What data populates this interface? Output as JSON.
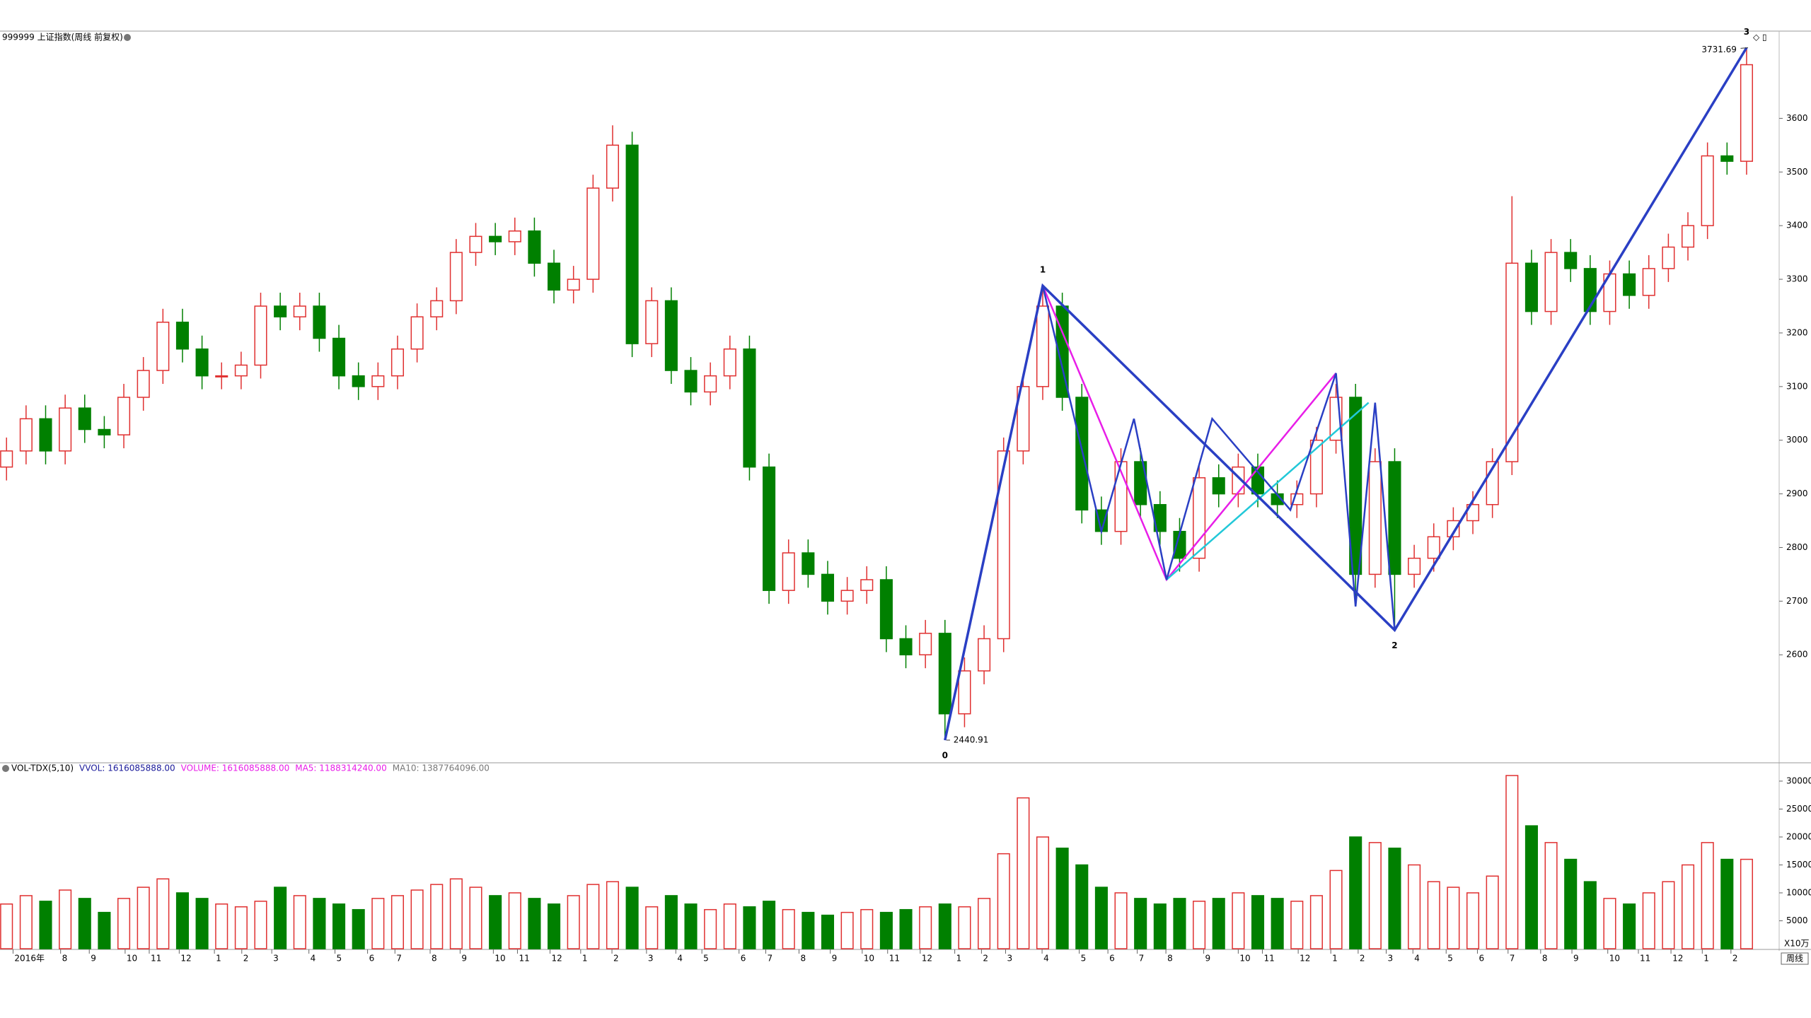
{
  "chart_data": {
    "type": "candlestick",
    "title": "999999 上证指数(周线 前复权)",
    "period_label": "周线",
    "up_color": "#e03030",
    "down_color": "#008000",
    "xlim": [
      -1,
      272
    ],
    "xticks": [
      {
        "value": 1,
        "label": "2016年"
      },
      {
        "value": 8.3,
        "label": "8"
      },
      {
        "value": 12.7,
        "label": "9"
      },
      {
        "value": 18.2,
        "label": "10"
      },
      {
        "value": 21.9,
        "label": "11"
      },
      {
        "value": 26.5,
        "label": "12"
      },
      {
        "value": 31.9,
        "label": "1"
      },
      {
        "value": 36.1,
        "label": "2"
      },
      {
        "value": 40.7,
        "label": "3"
      },
      {
        "value": 46.4,
        "label": "4"
      },
      {
        "value": 50.4,
        "label": "5"
      },
      {
        "value": 55.4,
        "label": "6"
      },
      {
        "value": 59.6,
        "label": "7"
      },
      {
        "value": 65,
        "label": "8"
      },
      {
        "value": 69.6,
        "label": "9"
      },
      {
        "value": 74.7,
        "label": "10"
      },
      {
        "value": 78.4,
        "label": "11"
      },
      {
        "value": 83.4,
        "label": "12"
      },
      {
        "value": 88.1,
        "label": "1"
      },
      {
        "value": 92.9,
        "label": "2"
      },
      {
        "value": 98.2,
        "label": "3"
      },
      {
        "value": 102.7,
        "label": "4"
      },
      {
        "value": 106.7,
        "label": "5"
      },
      {
        "value": 112.4,
        "label": "6"
      },
      {
        "value": 116.5,
        "label": "7"
      },
      {
        "value": 121.6,
        "label": "8"
      },
      {
        "value": 126.4,
        "label": "9"
      },
      {
        "value": 131.3,
        "label": "10"
      },
      {
        "value": 135.2,
        "label": "11"
      },
      {
        "value": 140.2,
        "label": "12"
      },
      {
        "value": 145.5,
        "label": "1"
      },
      {
        "value": 149.6,
        "label": "2"
      },
      {
        "value": 153.3,
        "label": "3"
      },
      {
        "value": 158.9,
        "label": "4"
      },
      {
        "value": 164.6,
        "label": "5"
      },
      {
        "value": 169,
        "label": "6"
      },
      {
        "value": 173.5,
        "label": "7"
      },
      {
        "value": 177.9,
        "label": "8"
      },
      {
        "value": 183.7,
        "label": "9"
      },
      {
        "value": 189,
        "label": "10"
      },
      {
        "value": 192.7,
        "label": "11"
      },
      {
        "value": 198.2,
        "label": "12"
      },
      {
        "value": 203.2,
        "label": "1"
      },
      {
        "value": 207.4,
        "label": "2"
      },
      {
        "value": 211.7,
        "label": "3"
      },
      {
        "value": 215.8,
        "label": "4"
      },
      {
        "value": 220.9,
        "label": "5"
      },
      {
        "value": 225.7,
        "label": "6"
      },
      {
        "value": 230.4,
        "label": "7"
      },
      {
        "value": 235.4,
        "label": "8"
      },
      {
        "value": 240.2,
        "label": "9"
      },
      {
        "value": 245.7,
        "label": "10"
      },
      {
        "value": 250.4,
        "label": "11"
      },
      {
        "value": 255.4,
        "label": "12"
      },
      {
        "value": 260.2,
        "label": "1"
      },
      {
        "value": 264.6,
        "label": "2"
      }
    ],
    "ylim": [
      2400,
      3760
    ],
    "yticks": [
      2600,
      2700,
      2800,
      2900,
      3000,
      3100,
      3200,
      3300,
      3400,
      3500,
      3600
    ],
    "candles": {
      "x": [
        0,
        3,
        6,
        9,
        12,
        15,
        18,
        21,
        24,
        27,
        30,
        33,
        36,
        39,
        42,
        45,
        48,
        51,
        54,
        57,
        60,
        63,
        66,
        69,
        72,
        75,
        78,
        81,
        84,
        87,
        90,
        93,
        96,
        99,
        102,
        105,
        108,
        111,
        114,
        117,
        120,
        123,
        126,
        129,
        132,
        135,
        138,
        141,
        144,
        147,
        150,
        153,
        156,
        159,
        162,
        165,
        168,
        171,
        174,
        177,
        180,
        183,
        186,
        189,
        192,
        195,
        198,
        201,
        204,
        207,
        210,
        213,
        216,
        219,
        222,
        225,
        228,
        231,
        234,
        237,
        240,
        243,
        246,
        249,
        252,
        255,
        258,
        261,
        264,
        267
      ],
      "open": [
        2950,
        2980,
        3040,
        2980,
        3060,
        3020,
        3010,
        3080,
        3130,
        3220,
        3170,
        3120,
        3120,
        3140,
        3250,
        3230,
        3250,
        3190,
        3120,
        3100,
        3120,
        3170,
        3230,
        3260,
        3350,
        3380,
        3370,
        3390,
        3330,
        3280,
        3300,
        3470,
        3550,
        3180,
        3260,
        3130,
        3090,
        3120,
        3170,
        2950,
        2720,
        2790,
        2750,
        2700,
        2720,
        2740,
        2630,
        2600,
        2640,
        2490,
        2570,
        2630,
        2980,
        3100,
        3250,
        3080,
        2870,
        2830,
        2960,
        2880,
        2830,
        2780,
        2930,
        2900,
        2950,
        2900,
        2880,
        2900,
        3000,
        3080,
        2750,
        2960,
        2750,
        2780,
        2820,
        2850,
        2880,
        2960,
        3330,
        3240,
        3350,
        3320,
        3240,
        3310,
        3270,
        3320,
        3360,
        3400,
        3530,
        3520
      ],
      "high": [
        3005,
        3065,
        3065,
        3085,
        3085,
        3045,
        3105,
        3155,
        3245,
        3245,
        3195,
        3145,
        3165,
        3275,
        3275,
        3275,
        3275,
        3215,
        3145,
        3145,
        3195,
        3255,
        3285,
        3375,
        3405,
        3405,
        3415,
        3415,
        3355,
        3325,
        3495,
        3587,
        3575,
        3285,
        3285,
        3155,
        3145,
        3195,
        3195,
        2975,
        2815,
        2815,
        2775,
        2745,
        2765,
        2765,
        2655,
        2665,
        2665,
        2595,
        2655,
        3005,
        3125,
        3288,
        3275,
        3105,
        2895,
        2985,
        2985,
        2905,
        2855,
        2955,
        2955,
        2975,
        2975,
        2925,
        2925,
        3025,
        3105,
        3105,
        2985,
        2985,
        2805,
        2845,
        2875,
        2905,
        2985,
        3455,
        3355,
        3375,
        3375,
        3345,
        3335,
        3335,
        3345,
        3385,
        3425,
        3555,
        3555,
        3731.69
      ],
      "low": [
        2925,
        2955,
        2955,
        2955,
        2995,
        2985,
        2985,
        3055,
        3105,
        3145,
        3095,
        3095,
        3095,
        3115,
        3205,
        3205,
        3165,
        3095,
        3075,
        3075,
        3095,
        3145,
        3205,
        3235,
        3325,
        3345,
        3345,
        3305,
        3255,
        3255,
        3275,
        3445,
        3155,
        3155,
        3105,
        3065,
        3065,
        3095,
        2925,
        2695,
        2695,
        2725,
        2675,
        2675,
        2695,
        2605,
        2575,
        2575,
        2440.91,
        2465,
        2545,
        2605,
        2955,
        3075,
        3055,
        2845,
        2805,
        2805,
        2855,
        2805,
        2755,
        2755,
        2875,
        2875,
        2875,
        2855,
        2855,
        2875,
        2975,
        2690,
        2725,
        2646,
        2725,
        2755,
        2795,
        2825,
        2855,
        2935,
        3215,
        3215,
        3295,
        3215,
        3215,
        3245,
        3245,
        3295,
        3335,
        3375,
        3495,
        3495
      ],
      "close": [
        2980,
        3040,
        2980,
        3060,
        3020,
        3010,
        3080,
        3130,
        3220,
        3170,
        3120,
        3120,
        3140,
        3250,
        3230,
        3250,
        3190,
        3120,
        3100,
        3120,
        3170,
        3230,
        3260,
        3350,
        3380,
        3370,
        3390,
        3330,
        3280,
        3300,
        3470,
        3550,
        3180,
        3260,
        3130,
        3090,
        3120,
        3170,
        2950,
        2720,
        2790,
        2750,
        2700,
        2720,
        2740,
        2630,
        2600,
        2640,
        2490,
        2570,
        2630,
        2980,
        3100,
        3250,
        3080,
        2870,
        2830,
        2960,
        2880,
        2830,
        2780,
        2930,
        2900,
        2950,
        2900,
        2880,
        2900,
        3000,
        3080,
        2750,
        2960,
        2750,
        2780,
        2820,
        2850,
        2880,
        2960,
        3330,
        3240,
        3350,
        3320,
        3240,
        3310,
        3270,
        3320,
        3360,
        3400,
        3530,
        3520,
        3700
      ]
    },
    "waves": {
      "labels": [
        "0",
        "1",
        "2",
        "3"
      ],
      "candles": [
        48,
        53,
        71,
        89
      ],
      "ends": [
        "low",
        "high",
        "low",
        "high"
      ],
      "color": "#2a3fc4"
    },
    "trendlines": [
      {
        "color": "#f07a24",
        "x": [
          159,
          213
        ],
        "y": [
          3288,
          2646
        ]
      },
      {
        "color": "#e81ee8",
        "x": [
          159,
          178,
          204
        ],
        "y": [
          3288,
          2740,
          3125
        ]
      },
      {
        "color": "#22c8d8",
        "x": [
          178,
          209
        ],
        "y": [
          2740,
          3070
        ]
      },
      {
        "color": "#2a3fc4",
        "x": [
          159,
          168,
          173,
          178,
          185,
          197,
          204,
          207,
          210,
          213
        ],
        "y": [
          3288,
          2830,
          3040,
          2740,
          3040,
          2870,
          3125,
          2690,
          3070,
          2646
        ]
      }
    ],
    "volume": {
      "title": "VOL-TDX(5,10)",
      "legend": [
        {
          "text": "VVOL: 1616085888.00",
          "color": "#1a1a9a"
        },
        {
          "text": "VOLUME: 1616085888.00",
          "color": "#e81ee8"
        },
        {
          "text": "MA5: 1188314240.00",
          "color": "#e81ee8"
        },
        {
          "text": "MA10: 1387764096.00",
          "color": "#777777"
        }
      ],
      "unit": "X10万",
      "ylim": [
        0,
        32900
      ],
      "yticks": [
        5000,
        10000,
        15000,
        20000,
        25000,
        30000
      ],
      "values": [
        8000,
        9500,
        8500,
        10500,
        9000,
        6500,
        9000,
        11000,
        12500,
        10000,
        9000,
        8000,
        7500,
        8500,
        11000,
        9500,
        9000,
        8000,
        7000,
        9000,
        9500,
        10500,
        11500,
        12500,
        11000,
        9500,
        10000,
        9000,
        8000,
        9500,
        11500,
        12000,
        11000,
        7500,
        9500,
        8000,
        7000,
        8000,
        7500,
        8500,
        7000,
        6500,
        6000,
        6500,
        7000,
        6500,
        7000,
        7500,
        8000,
        7500,
        9000,
        17000,
        27000,
        20000,
        18000,
        15000,
        11000,
        10000,
        9000,
        8000,
        9000,
        8500,
        9000,
        10000,
        9500,
        9000,
        8500,
        9500,
        14000,
        20000,
        19000,
        18000,
        15000,
        12000,
        11000,
        10000,
        13000,
        31000,
        22000,
        19000,
        16000,
        12000,
        9000,
        8000,
        10000,
        12000,
        15000,
        19000,
        16000,
        16000
      ]
    }
  }
}
